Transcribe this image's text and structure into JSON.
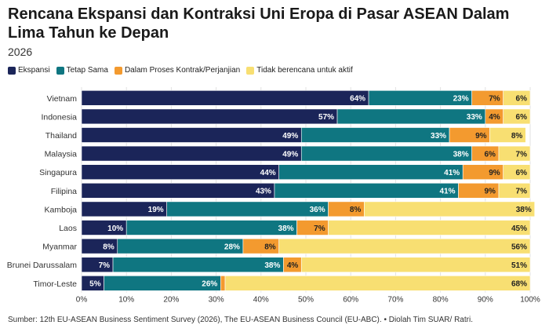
{
  "title": "Rencana Ekspansi dan Kontraksi Uni Eropa di Pasar ASEAN Dalam Lima Tahun ke Depan",
  "subtitle": "2026",
  "source": "Sumber: 12th EU-ASEAN Business Sentiment Survey (2026), The EU-ASEAN Business Council (EU-ABC). • Diolah Tim SUAR/ Ratri.",
  "chart_data": {
    "type": "bar",
    "orientation": "horizontal-stacked",
    "categories": [
      "Vietnam",
      "Indonesia",
      "Thailand",
      "Malaysia",
      "Singapura",
      "Filipina",
      "Kamboja",
      "Laos",
      "Myanmar",
      "Brunei Darussalam",
      "Timor-Leste"
    ],
    "series": [
      {
        "name": "Ekspansi",
        "color": "#1b2559",
        "values": [
          64,
          57,
          49,
          49,
          44,
          43,
          19,
          10,
          8,
          7,
          5
        ]
      },
      {
        "name": "Tetap Sama",
        "color": "#0f7681",
        "values": [
          23,
          33,
          33,
          38,
          41,
          41,
          36,
          38,
          28,
          38,
          26
        ]
      },
      {
        "name": "Dalam Proses Kontrak/Perjanjian",
        "color": "#f39a2f",
        "values": [
          7,
          4,
          9,
          6,
          9,
          9,
          8,
          7,
          8,
          4,
          1
        ]
      },
      {
        "name": "Tidak berencana untuk aktif",
        "color": "#f8df72",
        "values": [
          6,
          6,
          8,
          7,
          6,
          7,
          38,
          45,
          56,
          51,
          68
        ]
      }
    ],
    "data_labels": [
      [
        "64%",
        "57%",
        "49%",
        "49%",
        "44%",
        "43%",
        "19%",
        "10%",
        "8%",
        "7%",
        "5%"
      ],
      [
        "23%",
        "33%",
        "33%",
        "38%",
        "41%",
        "41%",
        "36%",
        "38%",
        "28%",
        "38%",
        "26%"
      ],
      [
        "7%",
        "4%",
        "9%",
        "6%",
        "9%",
        "9%",
        "8%",
        "7%",
        "8%",
        "4%",
        ""
      ],
      [
        "6%",
        "6%",
        "8%",
        "7%",
        "6%",
        "7%",
        "38%",
        "45%",
        "56%",
        "51%",
        "68%"
      ]
    ],
    "xlim": [
      0,
      100
    ],
    "xticks": [
      "0%",
      "10%",
      "20%",
      "30%",
      "40%",
      "50%",
      "60%",
      "70%",
      "80%",
      "90%",
      "100%"
    ],
    "grid": true,
    "legend": "top-left"
  }
}
